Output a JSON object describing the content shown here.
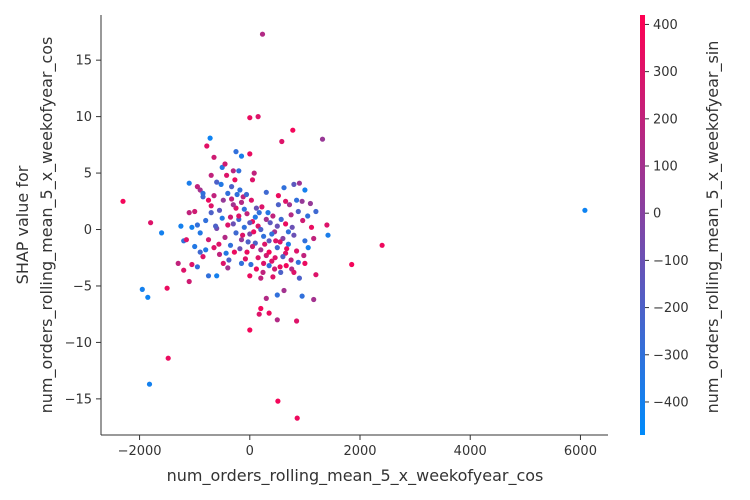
{
  "chart_data": {
    "type": "scatter",
    "title": "",
    "xlabel": "num_orders_rolling_mean_5_x_weekofyear_cos",
    "ylabel_lines": [
      "SHAP value for",
      "num_orders_rolling_mean_5_x_weekofyear_cos"
    ],
    "xlim": [
      -2700,
      6500
    ],
    "ylim": [
      -18.2,
      19.0
    ],
    "x_ticks": [
      -2000,
      0,
      2000,
      4000,
      6000
    ],
    "x_tick_labels": [
      "−2000",
      "0",
      "2000",
      "4000",
      "6000"
    ],
    "y_ticks": [
      -15,
      -10,
      -5,
      0,
      5,
      10,
      15
    ],
    "y_tick_labels": [
      "−15",
      "−10",
      "−5",
      "0",
      "5",
      "10",
      "15"
    ],
    "grid": false,
    "colorbar": {
      "label": "num_orders_rolling_mean_5_x_weekofyear_sin",
      "range": [
        -470,
        420
      ],
      "ticks": [
        400,
        300,
        200,
        100,
        0,
        -100,
        -200,
        -300,
        -400
      ],
      "tick_labels": [
        "400",
        "300",
        "200",
        "100",
        "0",
        "−100",
        "−200",
        "−300",
        "−400"
      ],
      "colors": [
        "#008bfb",
        "#ff0052"
      ]
    },
    "points": [
      [
        230,
        17.3,
        150
      ],
      [
        150,
        10.0,
        300
      ],
      [
        0,
        9.9,
        350
      ],
      [
        780,
        8.8,
        380
      ],
      [
        -720,
        8.1,
        -420
      ],
      [
        1320,
        8.0,
        60
      ],
      [
        -780,
        7.4,
        320
      ],
      [
        -250,
        6.9,
        -300
      ],
      [
        -150,
        6.5,
        -380
      ],
      [
        -650,
        6.4,
        250
      ],
      [
        0,
        6.7,
        340
      ],
      [
        580,
        7.8,
        300
      ],
      [
        -500,
        5.5,
        -350
      ],
      [
        -300,
        5.2,
        180
      ],
      [
        80,
        5.0,
        200
      ],
      [
        -1100,
        4.1,
        -380
      ],
      [
        -900,
        3.5,
        100
      ],
      [
        -600,
        4.2,
        -200
      ],
      [
        620,
        3.7,
        -300
      ],
      [
        800,
        4.0,
        -150
      ],
      [
        900,
        4.1,
        80
      ],
      [
        1000,
        3.5,
        -400
      ],
      [
        1100,
        2.3,
        50
      ],
      [
        1200,
        1.6,
        -250
      ],
      [
        1400,
        0.4,
        300
      ],
      [
        1420,
        -0.5,
        -380
      ],
      [
        1160,
        -0.8,
        200
      ],
      [
        1000,
        -1.0,
        -300
      ],
      [
        -2300,
        2.5,
        380
      ],
      [
        -1800,
        0.6,
        300
      ],
      [
        -1600,
        -0.3,
        -400
      ],
      [
        -1200,
        -1.0,
        -300
      ],
      [
        -1000,
        -1.5,
        -350
      ],
      [
        -1300,
        -3.0,
        200
      ],
      [
        -1200,
        -3.6,
        300
      ],
      [
        -1100,
        -4.6,
        250
      ],
      [
        -1500,
        -5.2,
        350
      ],
      [
        -1950,
        -5.3,
        -400
      ],
      [
        -1850,
        -6.0,
        -420
      ],
      [
        -750,
        -4.1,
        -300
      ],
      [
        -600,
        -4.1,
        -400
      ],
      [
        -400,
        -3.4,
        100
      ],
      [
        -150,
        -3.0,
        -300
      ],
      [
        0,
        -4.1,
        350
      ],
      [
        200,
        -4.3,
        200
      ],
      [
        420,
        -4.2,
        300
      ],
      [
        620,
        -5.4,
        100
      ],
      [
        500,
        -5.8,
        -300
      ],
      [
        300,
        -6.1,
        150
      ],
      [
        200,
        -7.0,
        380
      ],
      [
        170,
        -7.5,
        300
      ],
      [
        350,
        -7.4,
        350
      ],
      [
        500,
        -8.0,
        150
      ],
      [
        850,
        -8.1,
        300
      ],
      [
        0,
        -8.9,
        380
      ],
      [
        950,
        -5.9,
        -300
      ],
      [
        1160,
        -6.2,
        100
      ],
      [
        1200,
        -4.0,
        300
      ],
      [
        1850,
        -3.1,
        380
      ],
      [
        2400,
        -1.4,
        360
      ],
      [
        6080,
        1.7,
        -420
      ],
      [
        -1480,
        -11.4,
        350
      ],
      [
        -1820,
        -13.7,
        -400
      ],
      [
        510,
        -15.2,
        380
      ],
      [
        860,
        -16.7,
        360
      ],
      [
        -950,
        3.8,
        200
      ],
      [
        -850,
        2.9,
        -250
      ],
      [
        -700,
        2.1,
        300
      ],
      [
        -550,
        1.7,
        -150
      ],
      [
        -480,
        2.6,
        50
      ],
      [
        -400,
        3.2,
        -300
      ],
      [
        -350,
        1.1,
        250
      ],
      [
        -300,
        0.5,
        -100
      ],
      [
        -250,
        1.9,
        300
      ],
      [
        -200,
        0.9,
        -250
      ],
      [
        -150,
        2.4,
        150
      ],
      [
        -100,
        0.2,
        -300
      ],
      [
        -50,
        1.4,
        200
      ],
      [
        0,
        -0.4,
        -50
      ],
      [
        50,
        0.7,
        350
      ],
      [
        100,
        -1.2,
        -200
      ],
      [
        150,
        0.3,
        300
      ],
      [
        200,
        -1.8,
        100
      ],
      [
        250,
        -0.6,
        -300
      ],
      [
        300,
        -2.3,
        250
      ],
      [
        350,
        -1.0,
        -150
      ],
      [
        400,
        -2.8,
        300
      ],
      [
        450,
        -0.2,
        100
      ],
      [
        500,
        -1.6,
        -250
      ],
      [
        550,
        -3.3,
        350
      ],
      [
        600,
        -0.8,
        0
      ],
      [
        650,
        -2.1,
        300
      ],
      [
        700,
        -1.3,
        -350
      ],
      [
        750,
        -2.7,
        200
      ],
      [
        800,
        -0.5,
        -100
      ],
      [
        850,
        -1.9,
        300
      ],
      [
        -800,
        0.8,
        -300
      ],
      [
        -750,
        -0.9,
        250
      ],
      [
        -700,
        1.5,
        -200
      ],
      [
        -650,
        -1.6,
        300
      ],
      [
        -600,
        0.1,
        -50
      ],
      [
        -550,
        -2.2,
        200
      ],
      [
        -500,
        1.0,
        -350
      ],
      [
        -450,
        -0.7,
        150
      ],
      [
        -400,
        0.4,
        300
      ],
      [
        -350,
        -1.4,
        -300
      ],
      [
        -300,
        2.2,
        100
      ],
      [
        -250,
        -0.3,
        -250
      ],
      [
        -200,
        1.2,
        300
      ],
      [
        -150,
        -0.9,
        50
      ],
      [
        -100,
        1.8,
        -300
      ],
      [
        -50,
        -2.0,
        350
      ],
      [
        0,
        0.6,
        -150
      ],
      [
        50,
        -1.5,
        250
      ],
      [
        100,
        1.1,
        -350
      ],
      [
        150,
        -2.5,
        300
      ],
      [
        200,
        0.0,
        -200
      ],
      [
        250,
        -3.0,
        300
      ],
      [
        300,
        0.9,
        100
      ],
      [
        350,
        -2.0,
        380
      ],
      [
        400,
        -0.4,
        -300
      ],
      [
        450,
        -3.5,
        250
      ],
      [
        500,
        0.3,
        -100
      ],
      [
        550,
        -1.1,
        300
      ],
      [
        600,
        -2.4,
        -200
      ],
      [
        650,
        0.5,
        350
      ],
      [
        700,
        -0.2,
        -300
      ],
      [
        750,
        1.3,
        150
      ],
      [
        -900,
        -0.3,
        -350
      ],
      [
        -850,
        -2.4,
        300
      ],
      [
        -950,
        0.4,
        -300
      ],
      [
        -1000,
        1.6,
        250
      ],
      [
        -1050,
        0.2,
        -400
      ],
      [
        -900,
        -2.0,
        -250
      ],
      [
        -650,
        3.0,
        200
      ],
      [
        -520,
        4.0,
        -350
      ],
      [
        -420,
        4.8,
        300
      ],
      [
        -330,
        3.8,
        -200
      ],
      [
        -270,
        4.4,
        350
      ],
      [
        -180,
        3.5,
        -300
      ],
      [
        -120,
        2.9,
        200
      ],
      [
        -60,
        3.1,
        -250
      ],
      [
        30,
        2.6,
        300
      ],
      [
        120,
        1.9,
        -100
      ],
      [
        220,
        2.0,
        300
      ],
      [
        330,
        1.5,
        -350
      ],
      [
        420,
        1.2,
        200
      ],
      [
        520,
        2.2,
        -200
      ],
      [
        650,
        2.5,
        300
      ],
      [
        720,
        2.2,
        100
      ],
      [
        850,
        2.6,
        -300
      ],
      [
        950,
        2.5,
        50
      ],
      [
        -480,
        -3.0,
        300
      ],
      [
        -380,
        -2.7,
        -200
      ],
      [
        -280,
        -2.0,
        350
      ],
      [
        -180,
        -1.7,
        -100
      ],
      [
        -80,
        -2.6,
        300
      ],
      [
        20,
        -3.1,
        -300
      ],
      [
        120,
        -3.5,
        350
      ],
      [
        240,
        -3.8,
        200
      ],
      [
        350,
        -3.2,
        -300
      ],
      [
        460,
        -2.5,
        300
      ],
      [
        560,
        -3.8,
        -200
      ],
      [
        660,
        -3.2,
        380
      ],
      [
        760,
        -3.5,
        150
      ],
      [
        880,
        -2.9,
        -300
      ],
      [
        980,
        -2.3,
        200
      ],
      [
        1060,
        -1.6,
        -400
      ],
      [
        1120,
        0.2,
        350
      ],
      [
        1050,
        1.2,
        -300
      ],
      [
        960,
        0.8,
        250
      ],
      [
        880,
        1.6,
        -200
      ],
      [
        -1150,
        -0.9,
        300
      ],
      [
        -1250,
        0.3,
        -400
      ],
      [
        -1100,
        1.5,
        200
      ],
      [
        -850,
        3.2,
        -300
      ],
      [
        -750,
        2.6,
        350
      ],
      [
        -620,
        0.3,
        -200
      ],
      [
        -560,
        -1.3,
        300
      ],
      [
        -430,
        -2.1,
        -350
      ],
      [
        -330,
        2.7,
        200
      ],
      [
        -230,
        3.1,
        -300
      ],
      [
        -130,
        -0.5,
        300
      ],
      [
        -30,
        -1.1,
        -200
      ],
      [
        70,
        -0.2,
        350
      ],
      [
        170,
        1.5,
        -300
      ],
      [
        270,
        -1.3,
        300
      ],
      [
        370,
        0.6,
        -150
      ],
      [
        470,
        -1.0,
        300
      ],
      [
        570,
        0.9,
        -250
      ],
      [
        670,
        -1.7,
        350
      ],
      [
        770,
        0.2,
        -100
      ],
      [
        -450,
        5.8,
        250
      ],
      [
        -200,
        5.2,
        -300
      ],
      [
        50,
        4.4,
        300
      ],
      [
        300,
        3.3,
        -250
      ],
      [
        520,
        3.0,
        350
      ],
      [
        -700,
        4.8,
        200
      ],
      [
        -800,
        -1.8,
        -350
      ],
      [
        -1050,
        -3.1,
        300
      ],
      [
        -950,
        -3.3,
        -300
      ],
      [
        800,
        -3.8,
        300
      ],
      [
        900,
        -4.3,
        -200
      ],
      [
        1000,
        -3.0,
        350
      ]
    ]
  }
}
